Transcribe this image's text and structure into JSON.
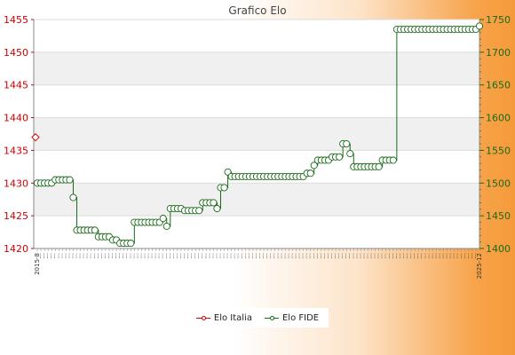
{
  "chart_data": {
    "type": "line",
    "title": "Grafico Elo",
    "legend_position": "bottom-center",
    "grid": true,
    "left_axis": {
      "ylim": [
        1420,
        1455
      ],
      "ticks": [
        1420,
        1425,
        1430,
        1435,
        1440,
        1445,
        1450,
        1455
      ],
      "color": "#cc0000"
    },
    "right_axis": {
      "ylim": [
        1400,
        1750
      ],
      "ticks": [
        1400,
        1450,
        1500,
        1550,
        1600,
        1650,
        1700,
        1750
      ],
      "color": "#1a6a1a"
    },
    "x_tick_first": "2015-8",
    "x_tick_last": "2025-12",
    "series": [
      {
        "name": "Elo Italia",
        "axis": "left",
        "color": "#d00000",
        "values": [
          1437
        ]
      },
      {
        "name": "Elo FIDE",
        "axis": "right",
        "color": "#1a6a1a",
        "values": [
          1500,
          1500,
          1500,
          1500,
          1500,
          1505,
          1505,
          1505,
          1505,
          1505,
          1478,
          1428,
          1428,
          1428,
          1428,
          1428,
          1428,
          1418,
          1418,
          1418,
          1418,
          1413,
          1413,
          1408,
          1408,
          1408,
          1408,
          1440,
          1440,
          1440,
          1440,
          1440,
          1440,
          1440,
          1440,
          1446,
          1434,
          1461,
          1461,
          1461,
          1461,
          1458,
          1458,
          1458,
          1458,
          1458,
          1470,
          1470,
          1470,
          1470,
          1461,
          1493,
          1493,
          1517,
          1510,
          1510,
          1510,
          1510,
          1510,
          1510,
          1510,
          1510,
          1510,
          1510,
          1510,
          1510,
          1510,
          1510,
          1510,
          1510,
          1510,
          1510,
          1510,
          1510,
          1510,
          1515,
          1515,
          1527,
          1535,
          1535,
          1535,
          1535,
          1540,
          1540,
          1540,
          1560,
          1560,
          1545,
          1525,
          1525,
          1525,
          1525,
          1525,
          1525,
          1525,
          1525,
          1535,
          1535,
          1535,
          1535,
          1735,
          1735,
          1735,
          1735,
          1735,
          1735,
          1735,
          1735,
          1735,
          1735,
          1735,
          1735,
          1735,
          1735,
          1735,
          1735,
          1735,
          1735,
          1735,
          1735,
          1735,
          1735,
          1735,
          1740
        ]
      }
    ]
  }
}
